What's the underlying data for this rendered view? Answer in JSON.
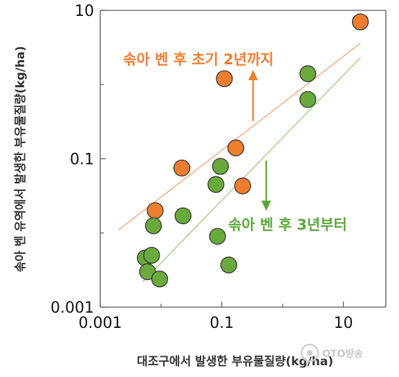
{
  "chart_data": {
    "type": "scatter",
    "xscale": "log",
    "yscale": "log",
    "xlim": [
      0.001,
      50
    ],
    "ylim": [
      0.001,
      10
    ],
    "x_ticks": [
      "0.001",
      "0.1",
      "10"
    ],
    "y_ticks": [
      "0.001",
      "0.1",
      "10"
    ],
    "xlabel": "대조구에서 발생한 부유물질량(kg/ha)",
    "ylabel": "솎아 벤 유역에서 발생한 부유물질량(kg/ha)",
    "series": [
      {
        "name": "솎아 벤 후 초기 2년까지",
        "color": "#ef7d30",
        "points": [
          {
            "x": 0.008,
            "y": 0.02
          },
          {
            "x": 0.022,
            "y": 0.075
          },
          {
            "x": 0.11,
            "y": 1.2
          },
          {
            "x": 0.17,
            "y": 0.14
          },
          {
            "x": 0.22,
            "y": 0.043
          },
          {
            "x": 19,
            "y": 7.0
          }
        ],
        "trend": {
          "x": [
            0.002,
            19
          ],
          "y": [
            0.011,
            3.6
          ]
        }
      },
      {
        "name": "솎아 벤 후 3년부터",
        "color": "#6aaa3c",
        "points": [
          {
            "x": 0.0055,
            "y": 0.0046
          },
          {
            "x": 0.006,
            "y": 0.003
          },
          {
            "x": 0.007,
            "y": 0.005
          },
          {
            "x": 0.0075,
            "y": 0.0125
          },
          {
            "x": 0.0095,
            "y": 0.0024
          },
          {
            "x": 0.023,
            "y": 0.017
          },
          {
            "x": 0.08,
            "y": 0.045
          },
          {
            "x": 0.085,
            "y": 0.009
          },
          {
            "x": 0.095,
            "y": 0.079
          },
          {
            "x": 0.13,
            "y": 0.0037
          },
          {
            "x": 2.6,
            "y": 1.4
          },
          {
            "x": 2.6,
            "y": 0.63
          }
        ],
        "trend": {
          "x": [
            0.005,
            19
          ],
          "y": [
            0.0022,
            2.3
          ]
        }
      }
    ],
    "annotations": [
      {
        "text": "솎아 벤 후 초기 2년까지",
        "color": "#ef7d30",
        "arrow": "up"
      },
      {
        "text": "솎아 벤 후 3년부터",
        "color": "#5aa83a",
        "arrow": "down"
      }
    ]
  },
  "watermark": "OTO방송"
}
